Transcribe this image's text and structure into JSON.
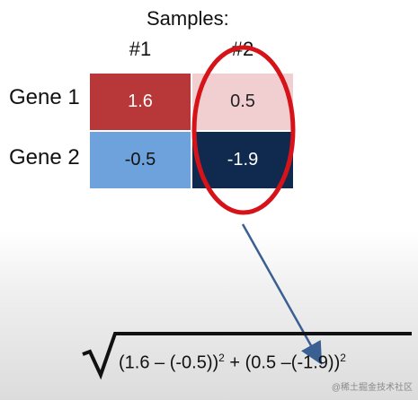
{
  "header": {
    "title": "Samples:",
    "col1": "#1",
    "col2": "#2"
  },
  "rows": {
    "gene1": "Gene 1",
    "gene2": "Gene 2"
  },
  "cells": {
    "g1s1": "1.6",
    "g1s2": "0.5",
    "g2s1": "-0.5",
    "g2s2": "-1.9"
  },
  "formula": {
    "term1": "(1.6 – (-0.5))",
    "plus": " + ",
    "term2": "(0.5 –(-1.9))",
    "exp": "2"
  },
  "colors": {
    "high": "#b8383a",
    "mid_high": "#f1cfd0",
    "mid_low": "#6ea2dd",
    "low": "#0f2a4e",
    "highlight": "#d7131a",
    "arrow": "#3a5f93"
  },
  "watermark": "@稀土掘金技术社区"
}
